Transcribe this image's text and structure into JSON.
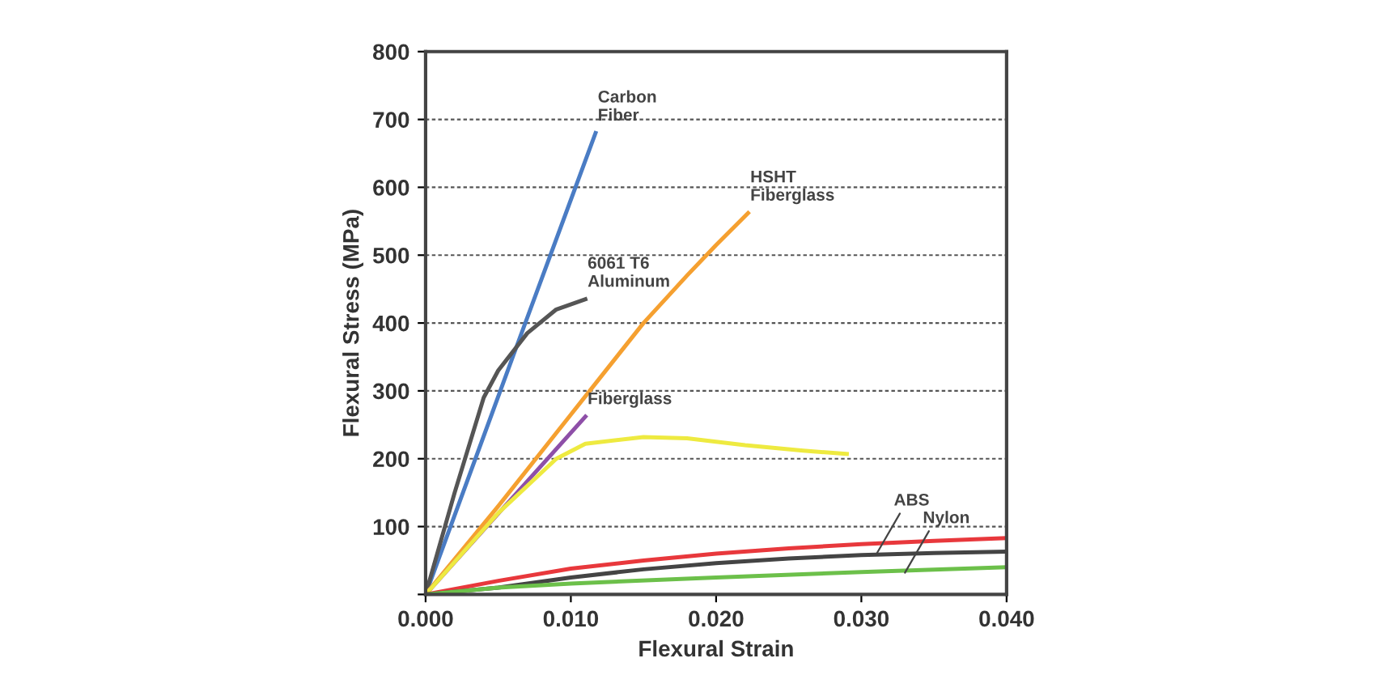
{
  "chart_data": {
    "type": "line",
    "xlabel": "Flexural Strain",
    "ylabel": "Flexural Stress (MPa)",
    "xlim": [
      0,
      0.04
    ],
    "xticks": [
      {
        "value": 0,
        "label": "0.000"
      },
      {
        "value": 0.01,
        "label": "0.010"
      },
      {
        "value": 0.02,
        "label": "0.020"
      },
      {
        "value": 0.03,
        "label": "0.030"
      },
      {
        "value": 0.04,
        "label": "0.040"
      }
    ],
    "ylim": [
      0,
      800
    ],
    "yticks": [
      {
        "value": 0,
        "label": null
      },
      100,
      200,
      300,
      400,
      500,
      600,
      700,
      800
    ],
    "grid": "y",
    "marker": "none",
    "line_style": "solid",
    "series": [
      {
        "color": "#4a7cc4",
        "x": [
          0,
          0.006,
          0.0117
        ],
        "values": [
          0,
          350,
          680
        ]
      },
      {
        "color": "#555555",
        "x": [
          0,
          0.002,
          0.004,
          0.005,
          0.007,
          0.009,
          0.011
        ],
        "values": [
          0,
          150,
          290,
          330,
          385,
          420,
          435
        ]
      },
      {
        "color": "#f5a030",
        "x": [
          0,
          0.005,
          0.01,
          0.015,
          0.018,
          0.02,
          0.0222
        ],
        "values": [
          0,
          130,
          265,
          400,
          470,
          515,
          562
        ]
      },
      {
        "color": "#8e4fa8",
        "x": [
          0,
          0.011
        ],
        "values": [
          0,
          262
        ]
      },
      {
        "color": "#eeea40",
        "x": [
          0,
          0.005,
          0.009,
          0.011,
          0.015,
          0.018,
          0.022,
          0.026,
          0.029
        ],
        "values": [
          0,
          120,
          200,
          222,
          232,
          230,
          220,
          212,
          207
        ]
      },
      {
        "color": "#e8383c",
        "x": [
          0,
          0.005,
          0.01,
          0.015,
          0.02,
          0.025,
          0.03,
          0.035,
          0.04
        ],
        "values": [
          0,
          20,
          38,
          50,
          60,
          68,
          74,
          79,
          83
        ]
      },
      {
        "color": "#444444",
        "x": [
          0,
          0.005,
          0.01,
          0.015,
          0.02,
          0.025,
          0.03,
          0.035,
          0.04
        ],
        "values": [
          0,
          10,
          25,
          37,
          46,
          53,
          58,
          61,
          63
        ]
      },
      {
        "color": "#6cc04a",
        "x": [
          0,
          0.005,
          0.01,
          0.02,
          0.03,
          0.04
        ],
        "values": [
          0,
          10,
          16,
          25,
          33,
          40
        ]
      }
    ],
    "annotations": [
      {
        "text": "Carbon\nFiber",
        "x": 0.0117,
        "y": 680
      },
      {
        "text": "6061 T6\nAluminum",
        "x": 0.011,
        "y": 435
      },
      {
        "text": "HSHT\nFiberglass",
        "x": 0.0222,
        "y": 562
      },
      {
        "text": "Fiberglass",
        "x": 0.011,
        "y": 262
      },
      {
        "text": "ABS",
        "x": 0.031,
        "y": 58
      },
      {
        "text": "Nylon",
        "x": 0.033,
        "y": 32
      }
    ]
  }
}
